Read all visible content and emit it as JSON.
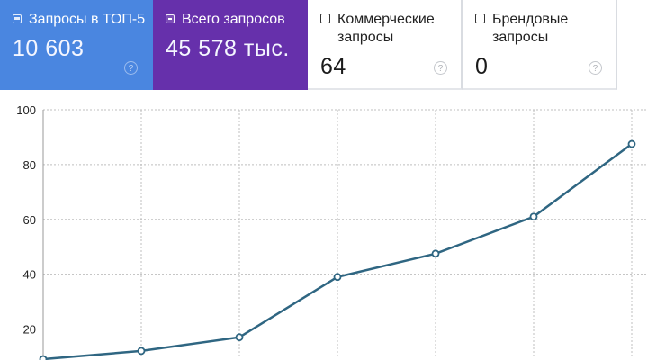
{
  "cards": [
    {
      "id": "top5",
      "label": "Запросы в ТОП-5",
      "value": "10 603",
      "icon": "image-icon",
      "help": "?"
    },
    {
      "id": "total",
      "label": "Всего запросов",
      "value": "45 578 тыс.",
      "icon": "minus-box-icon",
      "help": "?"
    },
    {
      "id": "commercial",
      "label_lines": [
        "Коммерческие",
        "запросы"
      ],
      "value": "64",
      "icon": "checkbox-icon",
      "help": "?"
    },
    {
      "id": "brand",
      "label_lines": [
        "Брендовые",
        "запросы"
      ],
      "value": "0",
      "icon": "checkbox-icon",
      "help": "?"
    }
  ],
  "colors": {
    "card_top5": "#4a86e0",
    "card_total": "#6630ab",
    "line": "#2f6682",
    "grid": "#bfbfbf"
  },
  "chart_data": {
    "type": "line",
    "y_ticks": [
      "100",
      "80",
      "60",
      "40",
      "20"
    ],
    "ylim": [
      10,
      100
    ],
    "grid": true,
    "x": [
      1,
      2,
      3,
      4,
      5,
      6,
      7
    ],
    "values": [
      9,
      12,
      17,
      39,
      47.5,
      61,
      87.5
    ]
  }
}
